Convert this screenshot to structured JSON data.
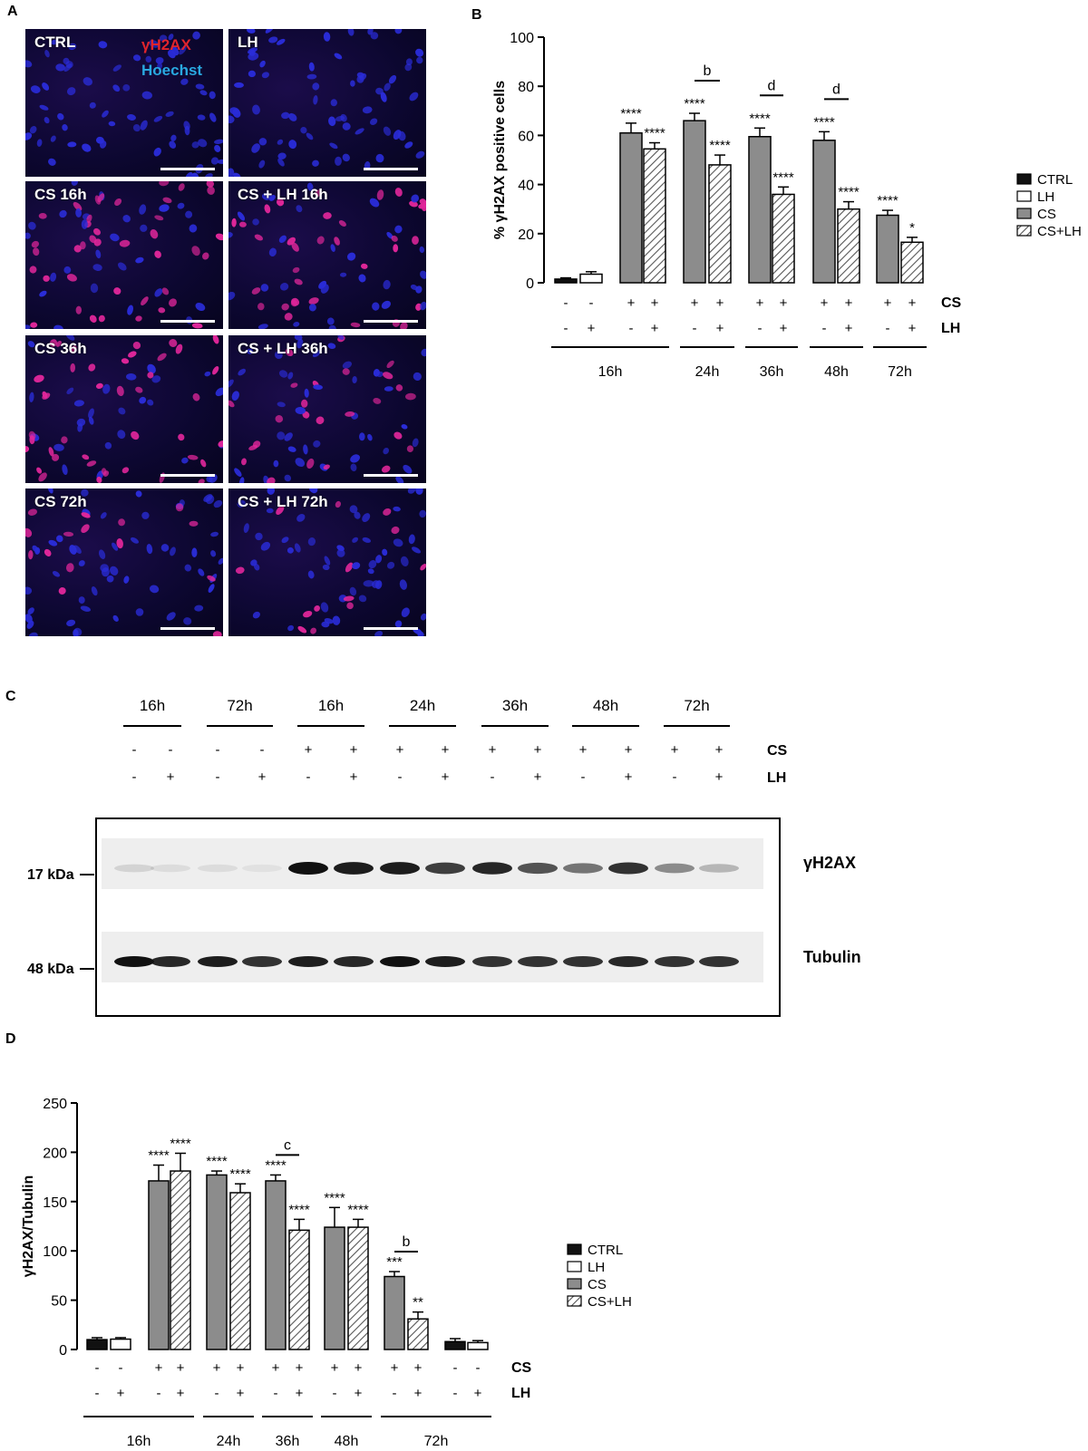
{
  "panel_labels": {
    "a": "A",
    "b": "B",
    "c": "C",
    "d": "D"
  },
  "panelA": {
    "stain_red": "γH2AX",
    "stain_blue": "Hoechst",
    "images": [
      {
        "label": "CTRL",
        "pink": 0
      },
      {
        "label": "LH",
        "pink": 0
      },
      {
        "label": "CS 16h",
        "pink": 0.55
      },
      {
        "label": "CS + LH 16h",
        "pink": 0.5
      },
      {
        "label": "CS 36h",
        "pink": 0.55
      },
      {
        "label": "CS + LH 36h",
        "pink": 0.35
      },
      {
        "label": "CS 72h",
        "pink": 0.3
      },
      {
        "label": "CS + LH 72h",
        "pink": 0.18
      }
    ]
  },
  "panelC": {
    "time_labels": [
      "16h",
      "72h",
      "16h",
      "24h",
      "36h",
      "48h",
      "72h"
    ],
    "cs_signs": [
      "-",
      "-",
      "-",
      "-",
      "+",
      "+",
      "+",
      "+",
      "+",
      "+",
      "+",
      "+",
      "+",
      "+"
    ],
    "lh_signs": [
      "-",
      "+",
      "-",
      "+",
      "-",
      "+",
      "-",
      "+",
      "-",
      "+",
      "-",
      "+",
      "-",
      "+"
    ],
    "row_cs": "CS",
    "row_lh": "LH",
    "marker_top": "17 kDa",
    "marker_bottom": "48 kDa",
    "band_top_label": "γH2AX",
    "band_bottom_label": "Tubulin",
    "gh2ax_intensity": [
      0.12,
      0.08,
      0.08,
      0.06,
      1.0,
      0.95,
      0.95,
      0.8,
      0.9,
      0.7,
      0.55,
      0.85,
      0.45,
      0.25
    ],
    "tubulin_intensity": [
      1.0,
      0.9,
      0.95,
      0.85,
      0.95,
      0.9,
      1.0,
      0.95,
      0.85,
      0.85,
      0.85,
      0.9,
      0.85,
      0.85
    ]
  },
  "chart_data": [
    {
      "type": "bar",
      "panel": "B",
      "ylabel": "% γH2AX positive cells",
      "ylim": [
        0,
        100
      ],
      "yticks": [
        0,
        20,
        40,
        60,
        80,
        100
      ],
      "legend": [
        "CTRL",
        "LH",
        "CS",
        "CS+LH"
      ],
      "legend_position": "right",
      "groups": [
        {
          "time": "16h",
          "bars": [
            {
              "series": "CTRL",
              "value": 1.5,
              "err": 0.5,
              "cs": "-",
              "lh": "-",
              "sig": ""
            },
            {
              "series": "LH",
              "value": 3.5,
              "err": 1.0,
              "cs": "-",
              "lh": "+",
              "sig": ""
            },
            {
              "series": "CS",
              "value": 61,
              "err": 4,
              "cs": "+",
              "lh": "-",
              "sig": "****"
            },
            {
              "series": "CS+LH",
              "value": 54.5,
              "err": 2.5,
              "cs": "+",
              "lh": "+",
              "sig": "****"
            }
          ]
        },
        {
          "time": "24h",
          "bars": [
            {
              "series": "CS",
              "value": 66,
              "err": 3,
              "cs": "+",
              "lh": "-",
              "sig": "****"
            },
            {
              "series": "CS+LH",
              "value": 48,
              "err": 4,
              "cs": "+",
              "lh": "+",
              "sig": "****"
            }
          ],
          "bracket": "b"
        },
        {
          "time": "36h",
          "bars": [
            {
              "series": "CS",
              "value": 59.5,
              "err": 3.5,
              "cs": "+",
              "lh": "-",
              "sig": "****"
            },
            {
              "series": "CS+LH",
              "value": 36,
              "err": 3,
              "cs": "+",
              "lh": "+",
              "sig": "****"
            }
          ],
          "bracket": "d"
        },
        {
          "time": "48h",
          "bars": [
            {
              "series": "CS",
              "value": 58,
              "err": 3.5,
              "cs": "+",
              "lh": "-",
              "sig": "****"
            },
            {
              "series": "CS+LH",
              "value": 30,
              "err": 3,
              "cs": "+",
              "lh": "+",
              "sig": "****"
            }
          ],
          "bracket": "d"
        },
        {
          "time": "72h",
          "bars": [
            {
              "series": "CS",
              "value": 27.5,
              "err": 2,
              "cs": "+",
              "lh": "-",
              "sig": "****"
            },
            {
              "series": "CS+LH",
              "value": 16.5,
              "err": 2,
              "cs": "+",
              "lh": "+",
              "sig": "*"
            }
          ]
        }
      ]
    },
    {
      "type": "bar",
      "panel": "D",
      "ylabel": "γH2AX/Tubulin",
      "ylim": [
        0,
        250
      ],
      "yticks": [
        0,
        50,
        100,
        150,
        200,
        250
      ],
      "legend": [
        "CTRL",
        "LH",
        "CS",
        "CS+LH"
      ],
      "legend_position": "right",
      "groups": [
        {
          "time": "16h",
          "bars": [
            {
              "series": "CTRL",
              "value": 10,
              "err": 2,
              "cs": "-",
              "lh": "-",
              "sig": ""
            },
            {
              "series": "LH",
              "value": 10.5,
              "err": 1.5,
              "cs": "-",
              "lh": "+",
              "sig": ""
            },
            {
              "series": "CS",
              "value": 171,
              "err": 16,
              "cs": "+",
              "lh": "-",
              "sig": "****"
            },
            {
              "series": "CS+LH",
              "value": 181,
              "err": 18,
              "cs": "+",
              "lh": "+",
              "sig": "****"
            }
          ]
        },
        {
          "time": "24h",
          "bars": [
            {
              "series": "CS",
              "value": 177,
              "err": 4,
              "cs": "+",
              "lh": "-",
              "sig": "****"
            },
            {
              "series": "CS+LH",
              "value": 159,
              "err": 9,
              "cs": "+",
              "lh": "+",
              "sig": "****"
            }
          ]
        },
        {
          "time": "36h",
          "bars": [
            {
              "series": "CS",
              "value": 171,
              "err": 6,
              "cs": "+",
              "lh": "-",
              "sig": "****"
            },
            {
              "series": "CS+LH",
              "value": 121,
              "err": 11,
              "cs": "+",
              "lh": "+",
              "sig": "****"
            }
          ],
          "bracket": "c"
        },
        {
          "time": "48h",
          "bars": [
            {
              "series": "CS",
              "value": 124,
              "err": 20,
              "cs": "+",
              "lh": "-",
              "sig": "****"
            },
            {
              "series": "CS+LH",
              "value": 124,
              "err": 8,
              "cs": "+",
              "lh": "+",
              "sig": "****"
            }
          ]
        },
        {
          "time": "72h",
          "bars": [
            {
              "series": "CS",
              "value": 74,
              "err": 5,
              "cs": "+",
              "lh": "-",
              "sig": "***"
            },
            {
              "series": "CS+LH",
              "value": 31,
              "err": 7,
              "cs": "+",
              "lh": "+",
              "sig": "**"
            },
            {
              "series": "CTRL",
              "value": 8,
              "err": 3,
              "cs": "-",
              "lh": "-",
              "sig": ""
            },
            {
              "series": "LH",
              "value": 7,
              "err": 2,
              "cs": "-",
              "lh": "+",
              "sig": ""
            }
          ],
          "bracket": "b"
        }
      ]
    }
  ],
  "row_labels": {
    "cs": "CS",
    "lh": "LH"
  },
  "colors": {
    "ctrl": "#111111",
    "lh": "#ffffff",
    "cs": "#8c8c8c",
    "cslh_hatch": "#555555",
    "nuclei_blue": "#2a2cd8",
    "nuclei_pink": "#e0269a"
  }
}
